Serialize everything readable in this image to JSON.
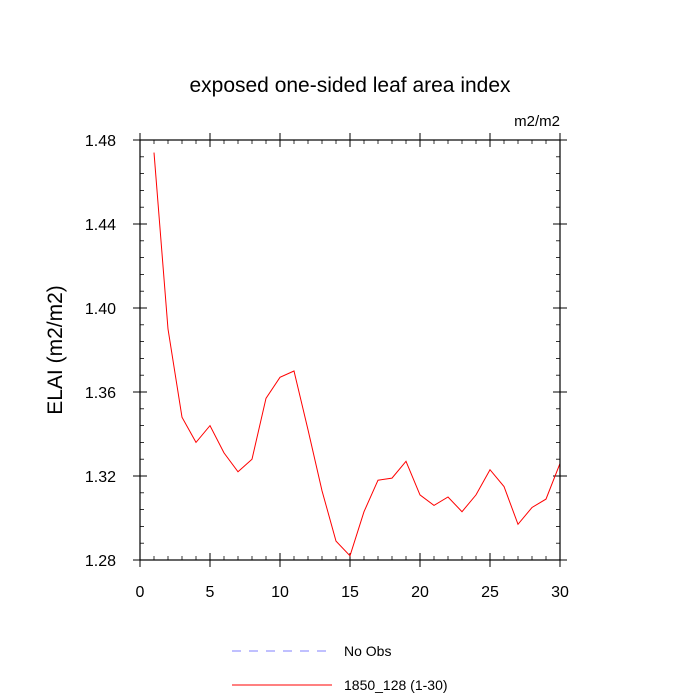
{
  "chart_data": {
    "type": "line",
    "title": "exposed one-sided leaf area index",
    "units": "m2/m2",
    "xlabel": "",
    "ylabel": "ELAI  (m2/m2)",
    "xlim": [
      0,
      30
    ],
    "ylim": [
      1.28,
      1.48
    ],
    "xticks": [
      "0",
      "5",
      "10",
      "15",
      "20",
      "25",
      "30"
    ],
    "yticks": [
      "1.28",
      "1.32",
      "1.36",
      "1.40",
      "1.44",
      "1.48"
    ],
    "grid": false,
    "legend_position": "bottom-center",
    "series": [
      {
        "name": "No Obs",
        "color": "#8080ff",
        "dash": "dashed",
        "x": [],
        "y": []
      },
      {
        "name": "1850_128 (1-30)",
        "color": "#ff0000",
        "dash": "solid",
        "x": [
          1,
          2,
          3,
          4,
          5,
          6,
          7,
          8,
          9,
          10,
          11,
          12,
          13,
          14,
          15,
          16,
          17,
          18,
          19,
          20,
          21,
          22,
          23,
          24,
          25,
          26,
          27,
          28,
          29,
          30
        ],
        "y": [
          1.474,
          1.39,
          1.348,
          1.336,
          1.344,
          1.331,
          1.322,
          1.328,
          1.357,
          1.367,
          1.37,
          1.342,
          1.313,
          1.289,
          1.282,
          1.303,
          1.318,
          1.319,
          1.327,
          1.311,
          1.306,
          1.31,
          1.303,
          1.311,
          1.323,
          1.315,
          1.297,
          1.305,
          1.309,
          1.326
        ]
      }
    ]
  }
}
